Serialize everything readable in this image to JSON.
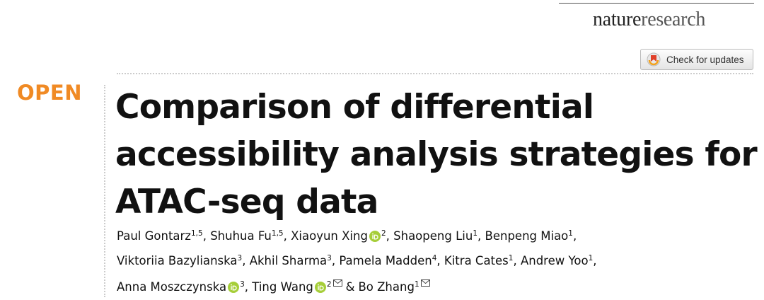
{
  "header": {
    "publisher": {
      "nature": "nature",
      "research": "research"
    },
    "updates_button": "Check for updates"
  },
  "badge": "OPEN",
  "title_lines": [
    "Comparison of differential",
    "accessibility analysis strategies for",
    "ATAC-seq data"
  ],
  "separator": ",",
  "conjunction": "&",
  "author_lines": [
    [
      {
        "name": "Paul Gontarz",
        "affiliations": "1,5"
      },
      {
        "name": "Shuhua Fu",
        "affiliations": "1,5"
      },
      {
        "name": "Xiaoyun Xing",
        "affiliations": "2",
        "orcid": true
      },
      {
        "name": "Shaopeng Liu",
        "affiliations": "1"
      },
      {
        "name": "Benpeng Miao",
        "affiliations": "1"
      }
    ],
    [
      {
        "name": "Viktoriia Bazylianska",
        "affiliations": "3"
      },
      {
        "name": "Akhil Sharma",
        "affiliations": "3"
      },
      {
        "name": "Pamela Madden",
        "affiliations": "4"
      },
      {
        "name": "Kitra Cates",
        "affiliations": "1"
      },
      {
        "name": "Andrew Yoo",
        "affiliations": "1"
      }
    ],
    [
      {
        "name": "Anna Moszczynska",
        "affiliations": "3",
        "orcid": true
      },
      {
        "name": "Ting Wang",
        "affiliations": "2",
        "orcid": true,
        "corresponding": true
      },
      {
        "name": "Bo Zhang",
        "affiliations": "1",
        "corresponding": true
      }
    ]
  ]
}
